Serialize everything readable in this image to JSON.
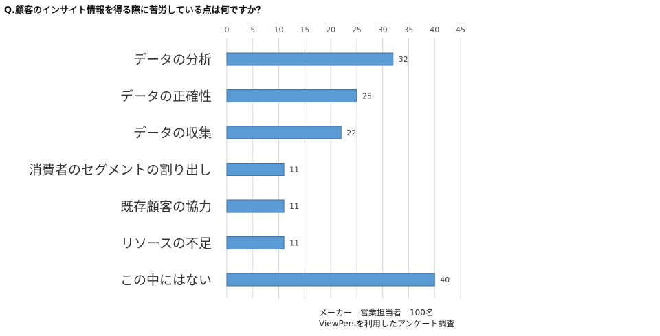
{
  "title": "Q.顧客のインサイト情報を得る際に苦労している点は何ですか？",
  "note": {
    "line1": "メーカー　営業担当者　100名",
    "line2": "ViewPersを利用したアンケート調査"
  },
  "chart_data": {
    "type": "bar",
    "orientation": "horizontal",
    "categories": [
      "データの分析",
      "データの正確性",
      "データの収集",
      "消費者のセグメントの割り出し",
      "既存顧客の協力",
      "リソースの不足",
      "この中にはない"
    ],
    "values": [
      32,
      25,
      22,
      11,
      11,
      11,
      40
    ],
    "xlim": [
      0,
      45
    ],
    "xticks": [
      "0",
      "5",
      "10",
      "15",
      "20",
      "25",
      "30",
      "35",
      "40",
      "45"
    ],
    "x_axis_position": "top",
    "grid": true,
    "data_labels": true,
    "bar_color": "#5b9bd5",
    "bar_edge_color": "#41719c",
    "grid_color": "#d9d9d9"
  }
}
